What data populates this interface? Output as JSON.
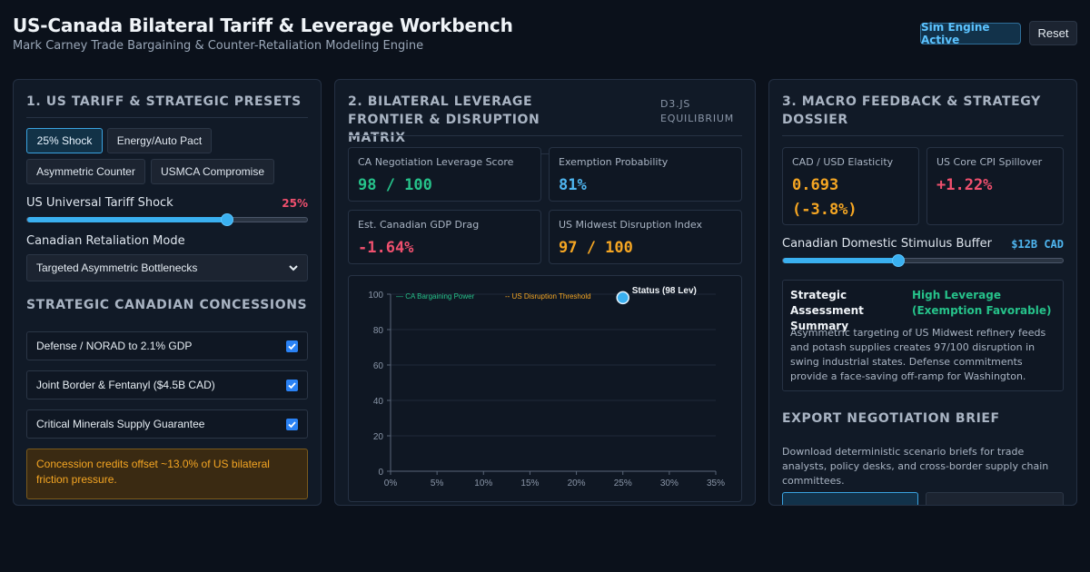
{
  "header": {
    "title": "US-Canada Bilateral Tariff & Leverage Workbench",
    "subtitle": "Mark Carney Trade Bargaining & Counter-Retaliation Modeling Engine",
    "badge": "Sim Engine Active",
    "reset_label": "Reset"
  },
  "panel1": {
    "title": "1. US TARIFF & STRATEGIC PRESETS",
    "presets": [
      "25% Shock",
      "Energy/Auto Pact",
      "Asymmetric Counter",
      "USMCA Compromise"
    ],
    "active_preset": "25% Shock",
    "tariff_label": "US Universal Tariff Shock",
    "tariff_value": "25%",
    "tariff_fraction": 0.71,
    "retaliation_label": "Canadian Retaliation Mode",
    "retaliation_value": "Targeted Asymmetric Bottlenecks",
    "concessions_title": "STRATEGIC CANADIAN CONCESSIONS",
    "concessions": [
      {
        "label": "Defense / NORAD to 2.1% GDP",
        "checked": true
      },
      {
        "label": "Joint Border & Fentanyl ($4.5B CAD)",
        "checked": true
      },
      {
        "label": "Critical Minerals Supply Guarantee",
        "checked": true
      }
    ],
    "note": "Concession credits offset ~13.0% of US bilateral friction pressure."
  },
  "panel2": {
    "title": "2. BILATERAL LEVERAGE FRONTIER & DISRUPTION MATRIX",
    "tag": "D3.JS EQUILIBRIUM",
    "metrics": [
      {
        "label": "CA Negotiation Leverage Score",
        "value": "98 / 100",
        "color": "#26c28a"
      },
      {
        "label": "Exemption Probability",
        "value": "81%",
        "color": "#4fb6f0"
      },
      {
        "label": "Est. Canadian GDP Drag",
        "value": "-1.64%",
        "color": "#f0506e"
      },
      {
        "label": "US Midwest Disruption Index",
        "value": "97 / 100",
        "color": "#f5a623"
      }
    ]
  },
  "chart_data": {
    "type": "scatter",
    "xlim": [
      0,
      35
    ],
    "ylim": [
      0,
      100
    ],
    "x_ticks": [
      "0%",
      "5%",
      "10%",
      "15%",
      "20%",
      "25%",
      "30%",
      "35%"
    ],
    "y_ticks": [
      "0",
      "20",
      "40",
      "60",
      "80",
      "100"
    ],
    "grid": true,
    "legend": [
      "— CA Bargaining Power",
      "-- US Disruption Threshold"
    ],
    "legend_placement": "top-left",
    "points": [
      {
        "x": 25,
        "y": 98,
        "label": "Status (98 Lev)"
      }
    ],
    "colors": {
      "power": "#26c28a",
      "threshold": "#f5a623",
      "point": "#3ab0f0"
    }
  },
  "panel3": {
    "title": "3. MACRO FEEDBACK & STRATEGY DOSSIER",
    "cards": [
      {
        "label": "CAD / USD Elasticity",
        "value": "0.693 (-3.8%)",
        "color": "#f5a623"
      },
      {
        "label": "US Core CPI Spillover",
        "value": "+1.22%",
        "color": "#f0506e"
      }
    ],
    "stimulus_label": "Canadian Domestic Stimulus Buffer",
    "stimulus_value": "$12B CAD",
    "stimulus_fraction": 0.41,
    "summary_title": "Strategic Assessment Summary",
    "summary_status": "High Leverage (Exemption Favorable)",
    "summary_text": "Asymmetric targeting of US Midwest refinery feeds and potash supplies creates 97/100 disruption in swing industrial states. Defense commitments provide a face-saving off-ramp for Washington.",
    "export_title": "EXPORT NEGOTIATION BRIEF",
    "export_text": "Download deterministic scenario briefs for trade analysts, policy desks, and cross-border supply chain committees."
  }
}
